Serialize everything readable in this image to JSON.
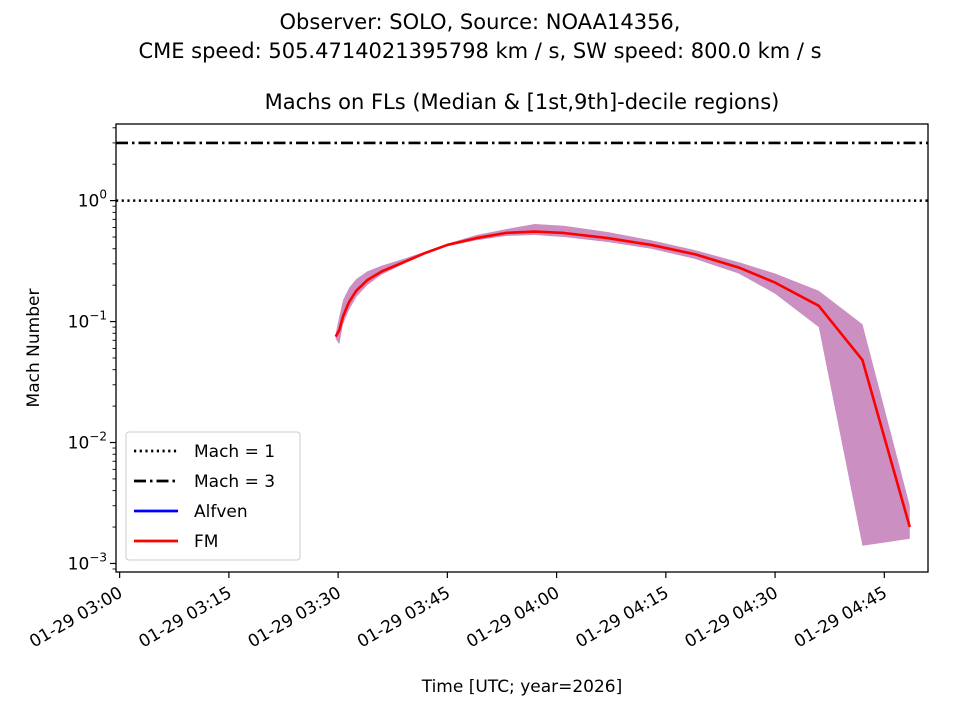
{
  "chart_data": {
    "type": "line",
    "suptitle_line1": "Observer: SOLO, Source: NOAA14356,",
    "suptitle_line2": "CME speed: 505.4714021395798 km / s, SW speed: 800.0 km / s",
    "title": "Machs on FLs (Median & [1st,9th]-decile regions)",
    "xlabel": "Time [UTC; year=2026]",
    "ylabel": "Mach Number",
    "yscale": "log",
    "ylim": [
      0.00085,
      4.3
    ],
    "xlim": [
      "2026-01-29 02:59:30",
      "2026-01-29 04:51:00"
    ],
    "x_ticks": [
      "01-29 03:00",
      "01-29 03:15",
      "01-29 03:30",
      "01-29 03:45",
      "01-29 04:00",
      "01-29 04:15",
      "01-29 04:30",
      "01-29 04:45"
    ],
    "y_ticks": [
      {
        "base": "10",
        "exp": "0",
        "value": 1
      },
      {
        "base": "10",
        "exp": "−1",
        "value": 0.1
      },
      {
        "base": "10",
        "exp": "−2",
        "value": 0.01
      },
      {
        "base": "10",
        "exp": "−3",
        "value": 0.001
      }
    ],
    "hlines": [
      {
        "name": "Mach = 1",
        "y": 1,
        "style": "dotted",
        "color": "#000000"
      },
      {
        "name": "Mach = 3",
        "y": 3,
        "style": "dashdot",
        "color": "#000000"
      }
    ],
    "series": [
      {
        "name": "Alfven",
        "color": "#0000ff",
        "x": [],
        "y": []
      },
      {
        "name": "FM",
        "color": "#ff0000",
        "x": [
          "2026-01-29 03:29:40",
          "2026-01-29 03:30:10",
          "2026-01-29 03:30:40",
          "2026-01-29 03:31:30",
          "2026-01-29 03:32:30",
          "2026-01-29 03:34:00",
          "2026-01-29 03:36:00",
          "2026-01-29 03:39:00",
          "2026-01-29 03:42:00",
          "2026-01-29 03:45:00",
          "2026-01-29 03:49:00",
          "2026-01-29 03:53:00",
          "2026-01-29 03:57:00",
          "2026-01-29 04:01:00",
          "2026-01-29 04:07:00",
          "2026-01-29 04:13:00",
          "2026-01-29 04:19:00",
          "2026-01-29 04:25:00",
          "2026-01-29 04:30:00",
          "2026-01-29 04:36:00",
          "2026-01-29 04:42:00",
          "2026-01-29 04:48:30"
        ],
        "y": [
          0.075,
          0.085,
          0.11,
          0.145,
          0.18,
          0.22,
          0.26,
          0.31,
          0.37,
          0.43,
          0.49,
          0.54,
          0.555,
          0.54,
          0.49,
          0.43,
          0.36,
          0.28,
          0.21,
          0.135,
          0.048,
          0.002
        ],
        "band_lower": [
          0.072,
          0.065,
          0.095,
          0.125,
          0.16,
          0.2,
          0.245,
          0.3,
          0.36,
          0.42,
          0.47,
          0.51,
          0.52,
          0.5,
          0.455,
          0.4,
          0.33,
          0.25,
          0.17,
          0.09,
          0.0014,
          0.0016
        ],
        "band_upper": [
          0.08,
          0.11,
          0.15,
          0.19,
          0.225,
          0.26,
          0.29,
          0.33,
          0.38,
          0.44,
          0.52,
          0.58,
          0.64,
          0.62,
          0.55,
          0.47,
          0.39,
          0.31,
          0.25,
          0.18,
          0.095,
          0.003
        ],
        "band_color": "#cc8fc2"
      }
    ],
    "legend": {
      "placement": "lower-left",
      "entries": [
        "Mach = 1",
        "Mach = 3",
        "Alfven",
        "FM"
      ]
    }
  }
}
